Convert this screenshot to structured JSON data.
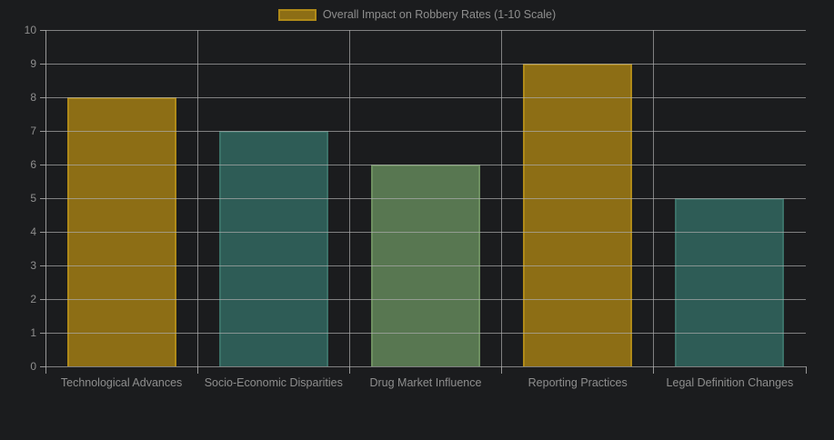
{
  "chart_data": {
    "type": "bar",
    "title": "",
    "series_label": "Overall Impact on Robbery Rates (1-10 Scale)",
    "categories": [
      "Technological Advances",
      "Socio-Economic Disparities",
      "Drug Market Influence",
      "Reporting Practices",
      "Legal Definition Changes"
    ],
    "values": [
      8,
      7,
      6,
      9,
      5
    ],
    "ylabel": "",
    "xlabel": "",
    "ylim": [
      0,
      10
    ],
    "ytick_step": 1,
    "grid": true,
    "legend_position": "top",
    "bar_colors": [
      {
        "fill": "#8d6e15",
        "border": "#b08a18"
      },
      {
        "fill": "#2e5c56",
        "border": "#3b7168"
      },
      {
        "fill": "#587751",
        "border": "#6d8f60"
      },
      {
        "fill": "#8d6e15",
        "border": "#b08a18"
      },
      {
        "fill": "#2e5c56",
        "border": "#3b7168"
      }
    ],
    "legend_swatch": {
      "fill": "#8d6e15",
      "border": "#b08a18"
    }
  },
  "colors": {
    "background": "#1b1c1e",
    "grid": "rgba(173,173,173,0.7)",
    "axis": "rgba(173,173,173,0.85)",
    "text": "#8e8e8e"
  }
}
